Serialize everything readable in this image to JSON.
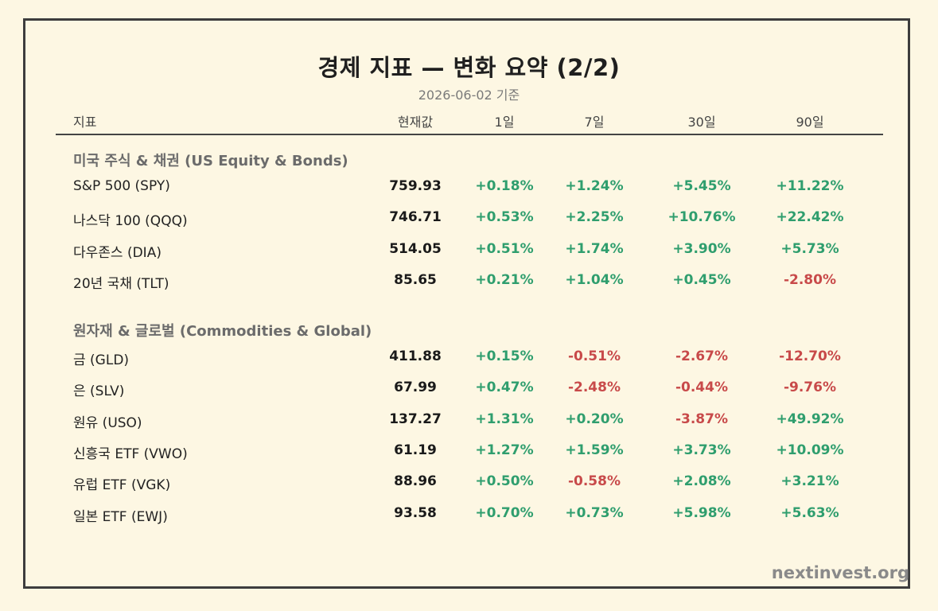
{
  "title": "경제 지표 — 변화 요약 (2/2)",
  "subtitle": "2026-06-02 기준",
  "columns": {
    "indicator": "지표",
    "current": "현재값",
    "d1": "1일",
    "d7": "7일",
    "d30": "30일",
    "d90": "90일"
  },
  "sections": [
    {
      "title": "미국 주식 & 채권 (US Equity & Bonds)",
      "rows": [
        {
          "name": "S&P 500 (SPY)",
          "current": "759.93",
          "d1": "+0.18%",
          "d7": "+1.24%",
          "d30": "+5.45%",
          "d90": "+11.22%"
        },
        {
          "name": "나스닥 100 (QQQ)",
          "current": "746.71",
          "d1": "+0.53%",
          "d7": "+2.25%",
          "d30": "+10.76%",
          "d90": "+22.42%"
        },
        {
          "name": "다우존스 (DIA)",
          "current": "514.05",
          "d1": "+0.51%",
          "d7": "+1.74%",
          "d30": "+3.90%",
          "d90": "+5.73%"
        },
        {
          "name": "20년 국채 (TLT)",
          "current": "85.65",
          "d1": "+0.21%",
          "d7": "+1.04%",
          "d30": "+0.45%",
          "d90": "-2.80%"
        }
      ]
    },
    {
      "title": "원자재 & 글로벌 (Commodities & Global)",
      "rows": [
        {
          "name": "금 (GLD)",
          "current": "411.88",
          "d1": "+0.15%",
          "d7": "-0.51%",
          "d30": "-2.67%",
          "d90": "-12.70%"
        },
        {
          "name": "은 (SLV)",
          "current": "67.99",
          "d1": "+0.47%",
          "d7": "-2.48%",
          "d30": "-0.44%",
          "d90": "-9.76%"
        },
        {
          "name": "원유 (USO)",
          "current": "137.27",
          "d1": "+1.31%",
          "d7": "+0.20%",
          "d30": "-3.87%",
          "d90": "+49.92%"
        },
        {
          "name": "신흥국 ETF (VWO)",
          "current": "61.19",
          "d1": "+1.27%",
          "d7": "+1.59%",
          "d30": "+3.73%",
          "d90": "+10.09%"
        },
        {
          "name": "유럽 ETF (VGK)",
          "current": "88.96",
          "d1": "+0.50%",
          "d7": "-0.58%",
          "d30": "+2.08%",
          "d90": "+3.21%"
        },
        {
          "name": "일본 ETF (EWJ)",
          "current": "93.58",
          "d1": "+0.70%",
          "d7": "+0.73%",
          "d30": "+5.98%",
          "d90": "+5.63%"
        }
      ]
    }
  ],
  "footer": "nextinvest.org",
  "colors": {
    "positive": "#2f9e6e",
    "negative": "#c84a4a",
    "background": "#fdf7e3",
    "border": "#3d3d3d"
  }
}
